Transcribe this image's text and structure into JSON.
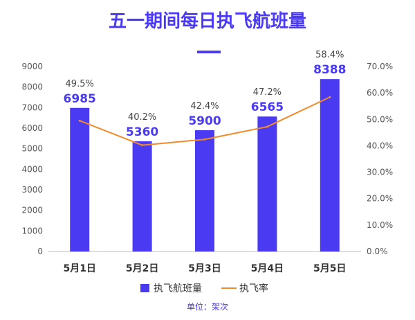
{
  "colors": {
    "bar": "#4a3af2",
    "line": "#f08a2a",
    "title": "#4a3af2",
    "axis": "#c8c8c8",
    "unit": "#4a3af2"
  },
  "chart_data": {
    "type": "bar",
    "title": "五一期间每日执飞航班量",
    "unit_note": "单位：架次",
    "categories": [
      "5月1日",
      "5月2日",
      "5月3日",
      "5月4日",
      "5月5日"
    ],
    "series": [
      {
        "name": "执飞航班量",
        "type": "bar",
        "axis": "left",
        "values": [
          6985,
          5360,
          5900,
          6565,
          8388
        ],
        "labels": [
          "6985",
          "5360",
          "5900",
          "6565",
          "8388"
        ]
      },
      {
        "name": "执飞率",
        "type": "line",
        "axis": "right",
        "values": [
          49.5,
          40.2,
          42.4,
          47.2,
          58.4
        ],
        "labels": [
          "49.5%",
          "40.2%",
          "42.4%",
          "47.2%",
          "58.4%"
        ]
      }
    ],
    "y_left": {
      "min": 0,
      "max": 9000,
      "ticks": [
        "0",
        "1000",
        "2000",
        "3000",
        "4000",
        "5000",
        "6000",
        "7000",
        "8000",
        "9000"
      ]
    },
    "y_right": {
      "min": 0,
      "max": 70,
      "ticks": [
        "0.0%",
        "10.0%",
        "20.0%",
        "30.0%",
        "40.0%",
        "50.0%",
        "60.0%",
        "70.0%"
      ]
    },
    "grid": false,
    "legend_position": "bottom"
  }
}
